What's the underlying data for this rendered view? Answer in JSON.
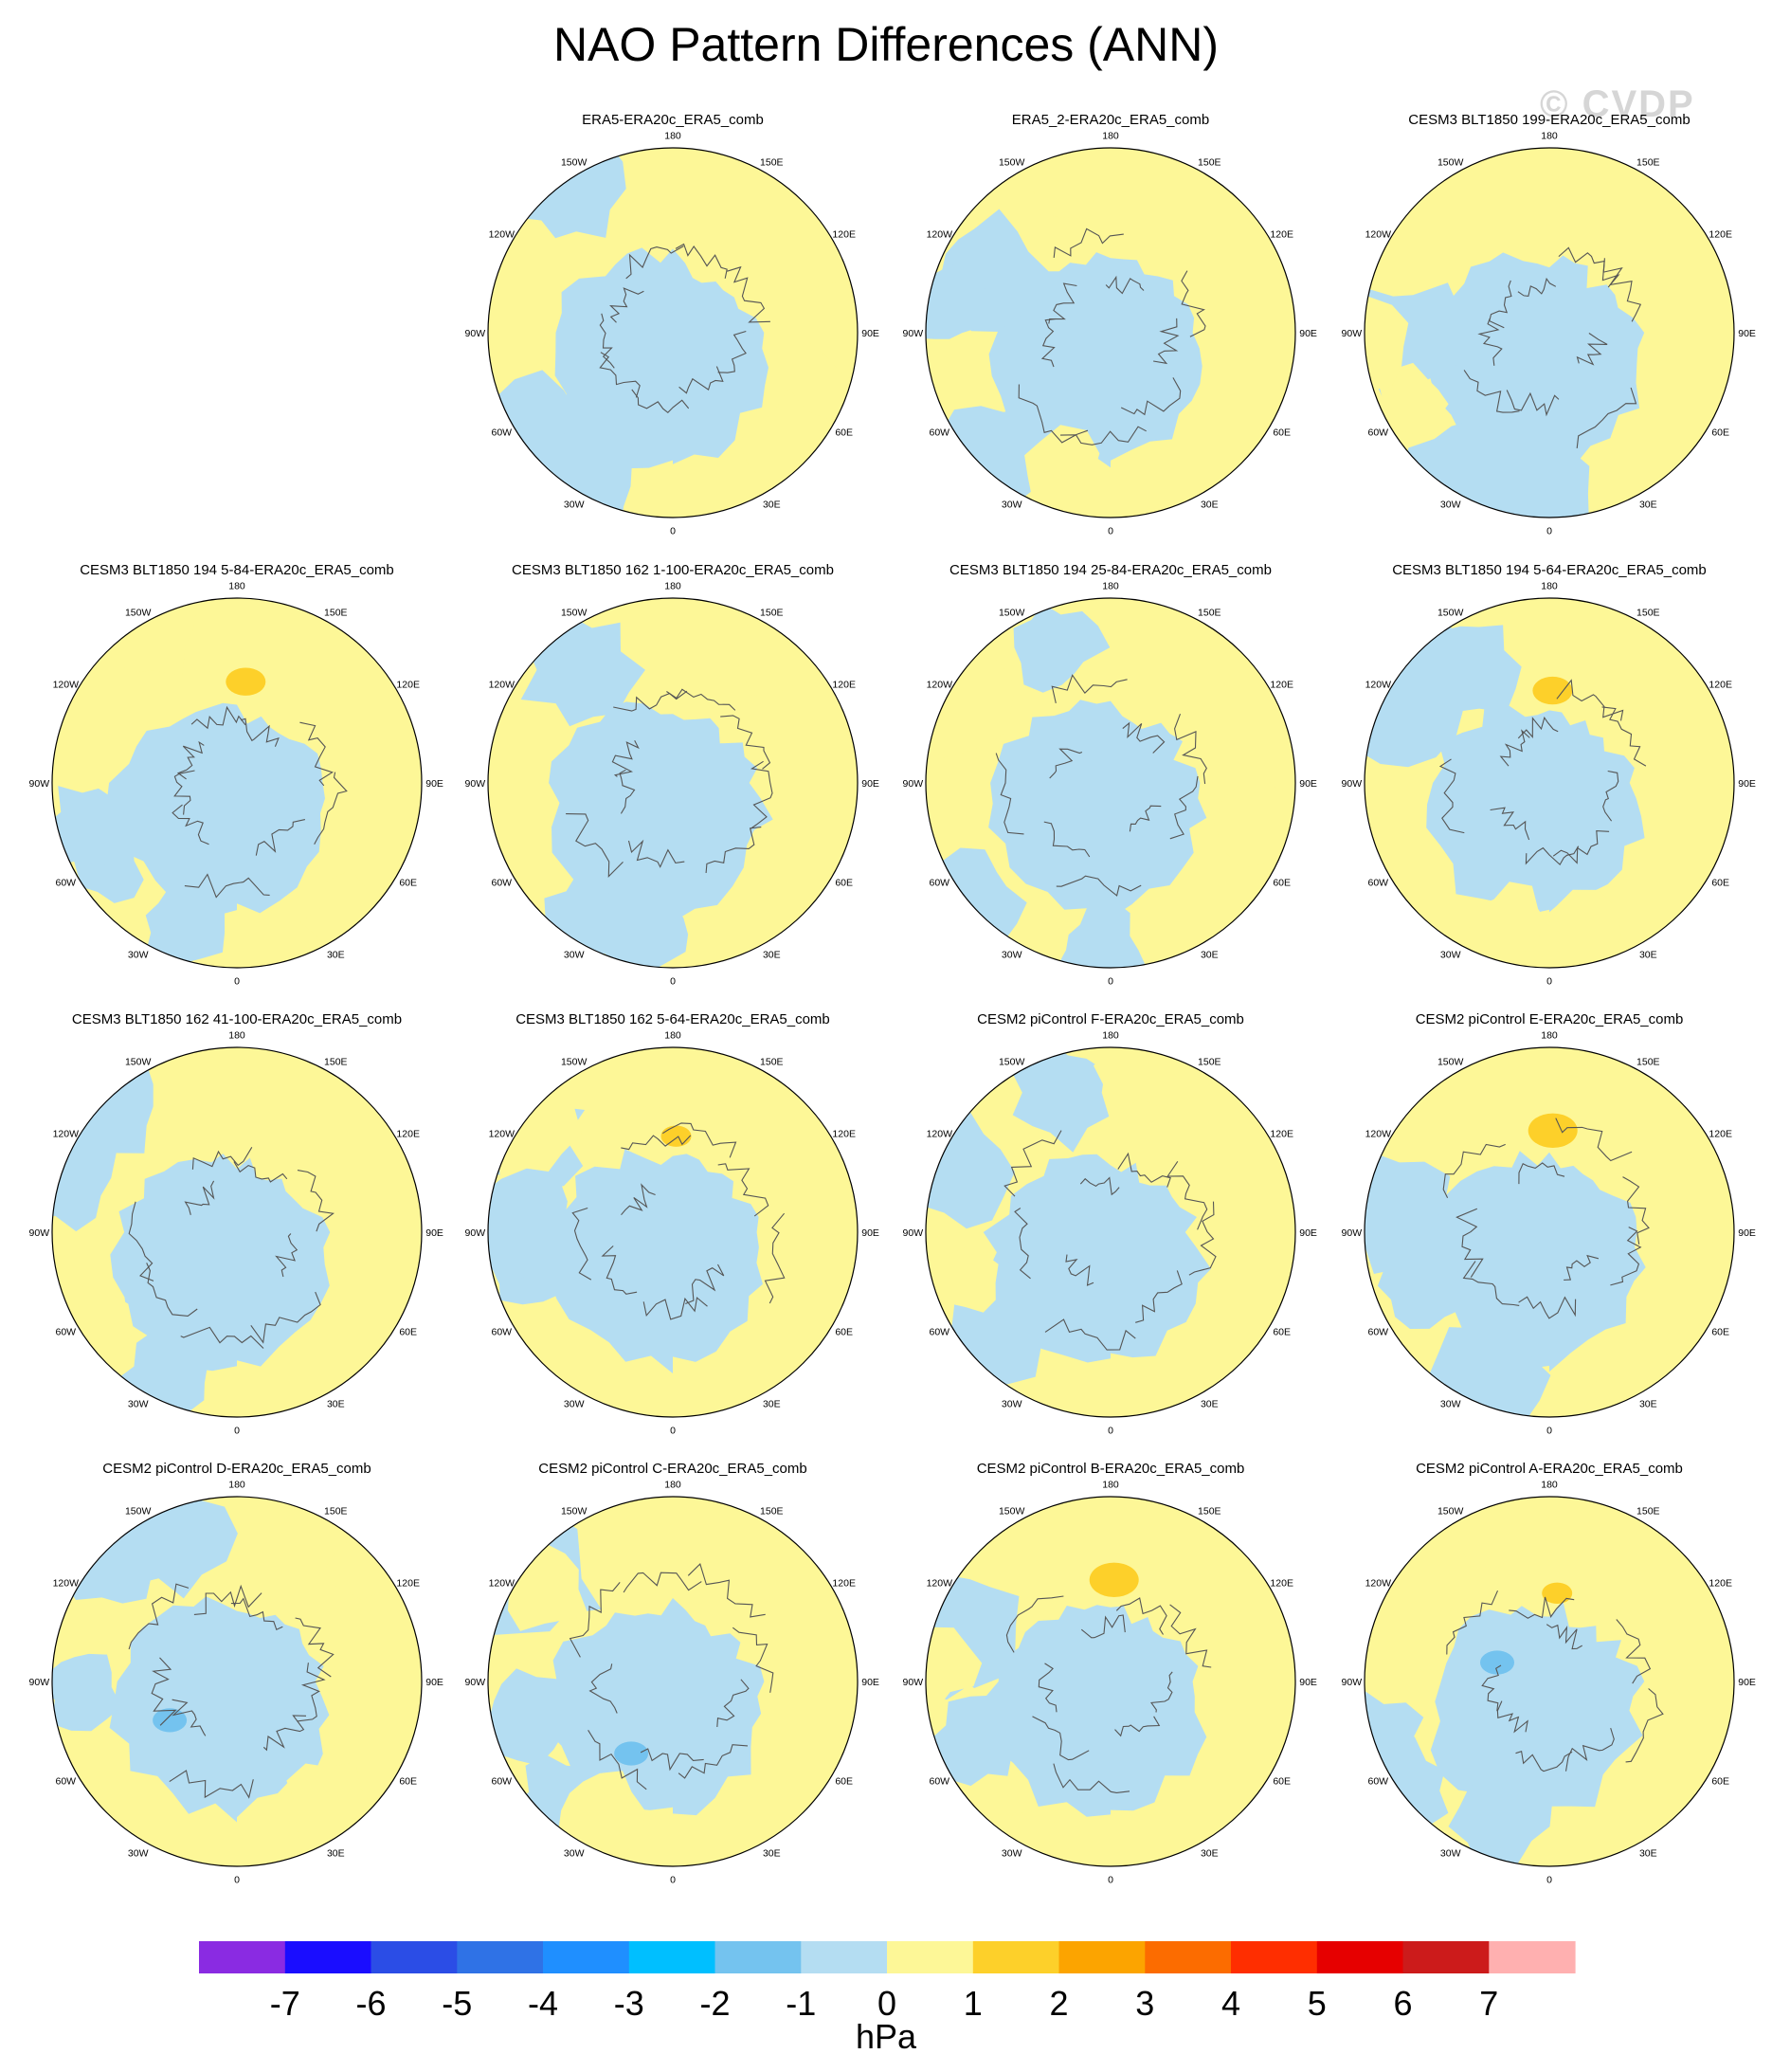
{
  "figure": {
    "title": "NAO Pattern Differences (ANN)",
    "watermark": "© CVDP",
    "colors": {
      "neg_light": "#b4ddf2",
      "pos_light": "#fdf797",
      "pos_mid": "#fdd02a",
      "neg_mid": "#74c3ef",
      "coast": "#555555"
    }
  },
  "chart_data": {
    "type": "heatmap",
    "projection": "north-polar-stereographic",
    "longitude_labels": [
      "180",
      "150E",
      "120E",
      "90E",
      "60E",
      "30E",
      "0",
      "30W",
      "60W",
      "90W",
      "120W",
      "150W"
    ],
    "panels": [
      {
        "row": 0,
        "col": 1,
        "title": "ERA5-ERA20c_ERA5_comb",
        "seed": 1,
        "blobs": []
      },
      {
        "row": 0,
        "col": 2,
        "title": "ERA5_2-ERA20c_ERA5_comb",
        "seed": 2,
        "blobs": []
      },
      {
        "row": 0,
        "col": 3,
        "title": "CESM3 BLT1850 199-ERA20c_ERA5_comb",
        "seed": 3,
        "blobs": []
      },
      {
        "row": 1,
        "col": 0,
        "title": "CESM3 BLT1850 194 5-84-ERA20c_ERA5_comb",
        "seed": 4,
        "blobs": [
          {
            "lon": 175,
            "r": 0.55,
            "sign": 1
          }
        ]
      },
      {
        "row": 1,
        "col": 1,
        "title": "CESM3 BLT1850 162 1-100-ERA20c_ERA5_comb",
        "seed": 5,
        "blobs": []
      },
      {
        "row": 1,
        "col": 2,
        "title": "CESM3 BLT1850 194 25-84-ERA20c_ERA5_comb",
        "seed": 6,
        "blobs": []
      },
      {
        "row": 1,
        "col": 3,
        "title": "CESM3 BLT1850 194 5-64-ERA20c_ERA5_comb",
        "seed": 7,
        "blobs": [
          {
            "lon": 178,
            "r": 0.5,
            "sign": 1
          }
        ]
      },
      {
        "row": 2,
        "col": 0,
        "title": "CESM3 BLT1850 162 41-100-ERA20c_ERA5_comb",
        "seed": 8,
        "blobs": []
      },
      {
        "row": 2,
        "col": 1,
        "title": "CESM3 BLT1850 162 5-64-ERA20c_ERA5_comb",
        "seed": 9,
        "blobs": [
          {
            "lon": 178,
            "r": 0.52,
            "sign": 1
          }
        ]
      },
      {
        "row": 2,
        "col": 2,
        "title": "CESM2 piControl F-ERA20c_ERA5_comb",
        "seed": 10,
        "blobs": []
      },
      {
        "row": 2,
        "col": 3,
        "title": "CESM2 piControl E-ERA20c_ERA5_comb",
        "seed": 11,
        "blobs": [
          {
            "lon": 178,
            "r": 0.55,
            "sign": 1
          }
        ]
      },
      {
        "row": 3,
        "col": 0,
        "title": "CESM2 piControl D-ERA20c_ERA5_comb",
        "seed": 12,
        "blobs": [
          {
            "lon": 300,
            "r": 0.42,
            "sign": -1
          }
        ]
      },
      {
        "row": 3,
        "col": 1,
        "title": "CESM2 piControl C-ERA20c_ERA5_comb",
        "seed": 13,
        "blobs": [
          {
            "lon": 330,
            "r": 0.45,
            "sign": -1
          }
        ]
      },
      {
        "row": 3,
        "col": 2,
        "title": "CESM2 piControl B-ERA20c_ERA5_comb",
        "seed": 14,
        "blobs": [
          {
            "lon": 178,
            "r": 0.55,
            "sign": 1
          }
        ]
      },
      {
        "row": 3,
        "col": 3,
        "title": "CESM2 piControl A-ERA20c_ERA5_comb",
        "seed": 15,
        "blobs": [
          {
            "lon": 175,
            "r": 0.48,
            "sign": 1
          },
          {
            "lon": 250,
            "r": 0.3,
            "sign": -1
          }
        ]
      }
    ],
    "colorbar": {
      "colors": [
        "#8a2be2",
        "#1a0dff",
        "#2b4de6",
        "#2f72e6",
        "#1f8fff",
        "#00bfff",
        "#74c3ef",
        "#b4ddf2",
        "#fdf797",
        "#fdd02a",
        "#fca400",
        "#fc6c00",
        "#ff2e00",
        "#e60000",
        "#cc1b1b",
        "#ffb0b0"
      ],
      "labels": [
        "-7",
        "-6",
        "-5",
        "-4",
        "-3",
        "-2",
        "-1",
        "0",
        "1",
        "2",
        "3",
        "4",
        "5",
        "6",
        "7"
      ],
      "units": "hPa"
    }
  }
}
